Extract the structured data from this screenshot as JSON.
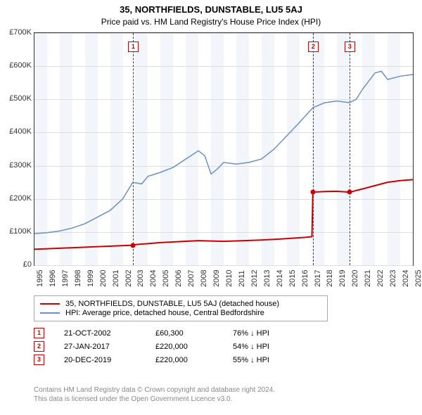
{
  "title": "35, NORTHFIELDS, DUNSTABLE, LU5 5AJ",
  "subtitle": "Price paid vs. HM Land Registry's House Price Index (HPI)",
  "chart": {
    "type": "line",
    "x_years": [
      1995,
      1996,
      1997,
      1998,
      1999,
      2000,
      2001,
      2002,
      2003,
      2004,
      2005,
      2006,
      2007,
      2008,
      2009,
      2010,
      2011,
      2012,
      2013,
      2014,
      2015,
      2016,
      2017,
      2018,
      2019,
      2020,
      2021,
      2022,
      2023,
      2024,
      2025
    ],
    "ylim": [
      0,
      700000
    ],
    "ytick_step": 100000,
    "ytick_labels": [
      "£0",
      "£100K",
      "£200K",
      "£300K",
      "£400K",
      "£500K",
      "£600K",
      "£700K"
    ],
    "background_color": "#ffffff",
    "grid_color": "#dddddd",
    "shade_colors": [
      "#f2f6fb",
      "#ffffff"
    ],
    "series": {
      "property": {
        "label": "35, NORTHFIELDS, DUNSTABLE, LU5 5AJ (detached house)",
        "color": "#cc0000",
        "line_width": 2,
        "data": [
          [
            1995.0,
            48000
          ],
          [
            2002.8,
            60300
          ],
          [
            2003.0,
            62000
          ],
          [
            2005.0,
            68000
          ],
          [
            2008.0,
            74000
          ],
          [
            2010.0,
            72000
          ],
          [
            2013.0,
            76000
          ],
          [
            2015.0,
            80000
          ],
          [
            2016.5,
            84000
          ],
          [
            2017.0,
            86000
          ],
          [
            2017.07,
            220000
          ],
          [
            2018.0,
            222000
          ],
          [
            2019.0,
            223000
          ],
          [
            2019.97,
            220000
          ],
          [
            2021.0,
            230000
          ],
          [
            2022.0,
            240000
          ],
          [
            2023.0,
            250000
          ],
          [
            2024.0,
            255000
          ],
          [
            2025.0,
            258000
          ]
        ]
      },
      "hpi": {
        "label": "HPI: Average price, detached house, Central Bedfordshire",
        "color": "#6b8fc9",
        "line_width": 1.5,
        "data": [
          [
            1995.0,
            95000
          ],
          [
            1996.0,
            98000
          ],
          [
            1997.0,
            103000
          ],
          [
            1998.0,
            112000
          ],
          [
            1999.0,
            125000
          ],
          [
            2000.0,
            145000
          ],
          [
            2001.0,
            165000
          ],
          [
            2002.0,
            200000
          ],
          [
            2002.8,
            250000
          ],
          [
            2003.5,
            245000
          ],
          [
            2004.0,
            268000
          ],
          [
            2005.0,
            280000
          ],
          [
            2006.0,
            295000
          ],
          [
            2007.0,
            320000
          ],
          [
            2008.0,
            345000
          ],
          [
            2008.5,
            330000
          ],
          [
            2009.0,
            275000
          ],
          [
            2009.5,
            290000
          ],
          [
            2010.0,
            310000
          ],
          [
            2011.0,
            305000
          ],
          [
            2012.0,
            310000
          ],
          [
            2013.0,
            320000
          ],
          [
            2014.0,
            350000
          ],
          [
            2015.0,
            390000
          ],
          [
            2016.0,
            430000
          ],
          [
            2017.07,
            475000
          ],
          [
            2018.0,
            490000
          ],
          [
            2019.0,
            495000
          ],
          [
            2019.97,
            490000
          ],
          [
            2020.5,
            500000
          ],
          [
            2021.0,
            530000
          ],
          [
            2022.0,
            580000
          ],
          [
            2022.5,
            585000
          ],
          [
            2023.0,
            560000
          ],
          [
            2024.0,
            570000
          ],
          [
            2025.0,
            575000
          ]
        ]
      }
    },
    "markers": [
      {
        "id": "1",
        "year": 2002.8,
        "price": 60300
      },
      {
        "id": "2",
        "year": 2017.07,
        "price": 220000
      },
      {
        "id": "3",
        "year": 2019.97,
        "price": 220000
      }
    ]
  },
  "legend": [
    {
      "color": "#cc0000",
      "label": "35, NORTHFIELDS, DUNSTABLE, LU5 5AJ (detached house)"
    },
    {
      "color": "#6b8fc9",
      "label": "HPI: Average price, detached house, Central Bedfordshire"
    }
  ],
  "events": [
    {
      "id": "1",
      "date": "21-OCT-2002",
      "price": "£60,300",
      "delta": "76% ↓ HPI"
    },
    {
      "id": "2",
      "date": "27-JAN-2017",
      "price": "£220,000",
      "delta": "54% ↓ HPI"
    },
    {
      "id": "3",
      "date": "20-DEC-2019",
      "price": "£220,000",
      "delta": "55% ↓ HPI"
    }
  ],
  "footer_line1": "Contains HM Land Registry data © Crown copyright and database right 2024.",
  "footer_line2": "This data is licensed under the Open Government Licence v3.0."
}
